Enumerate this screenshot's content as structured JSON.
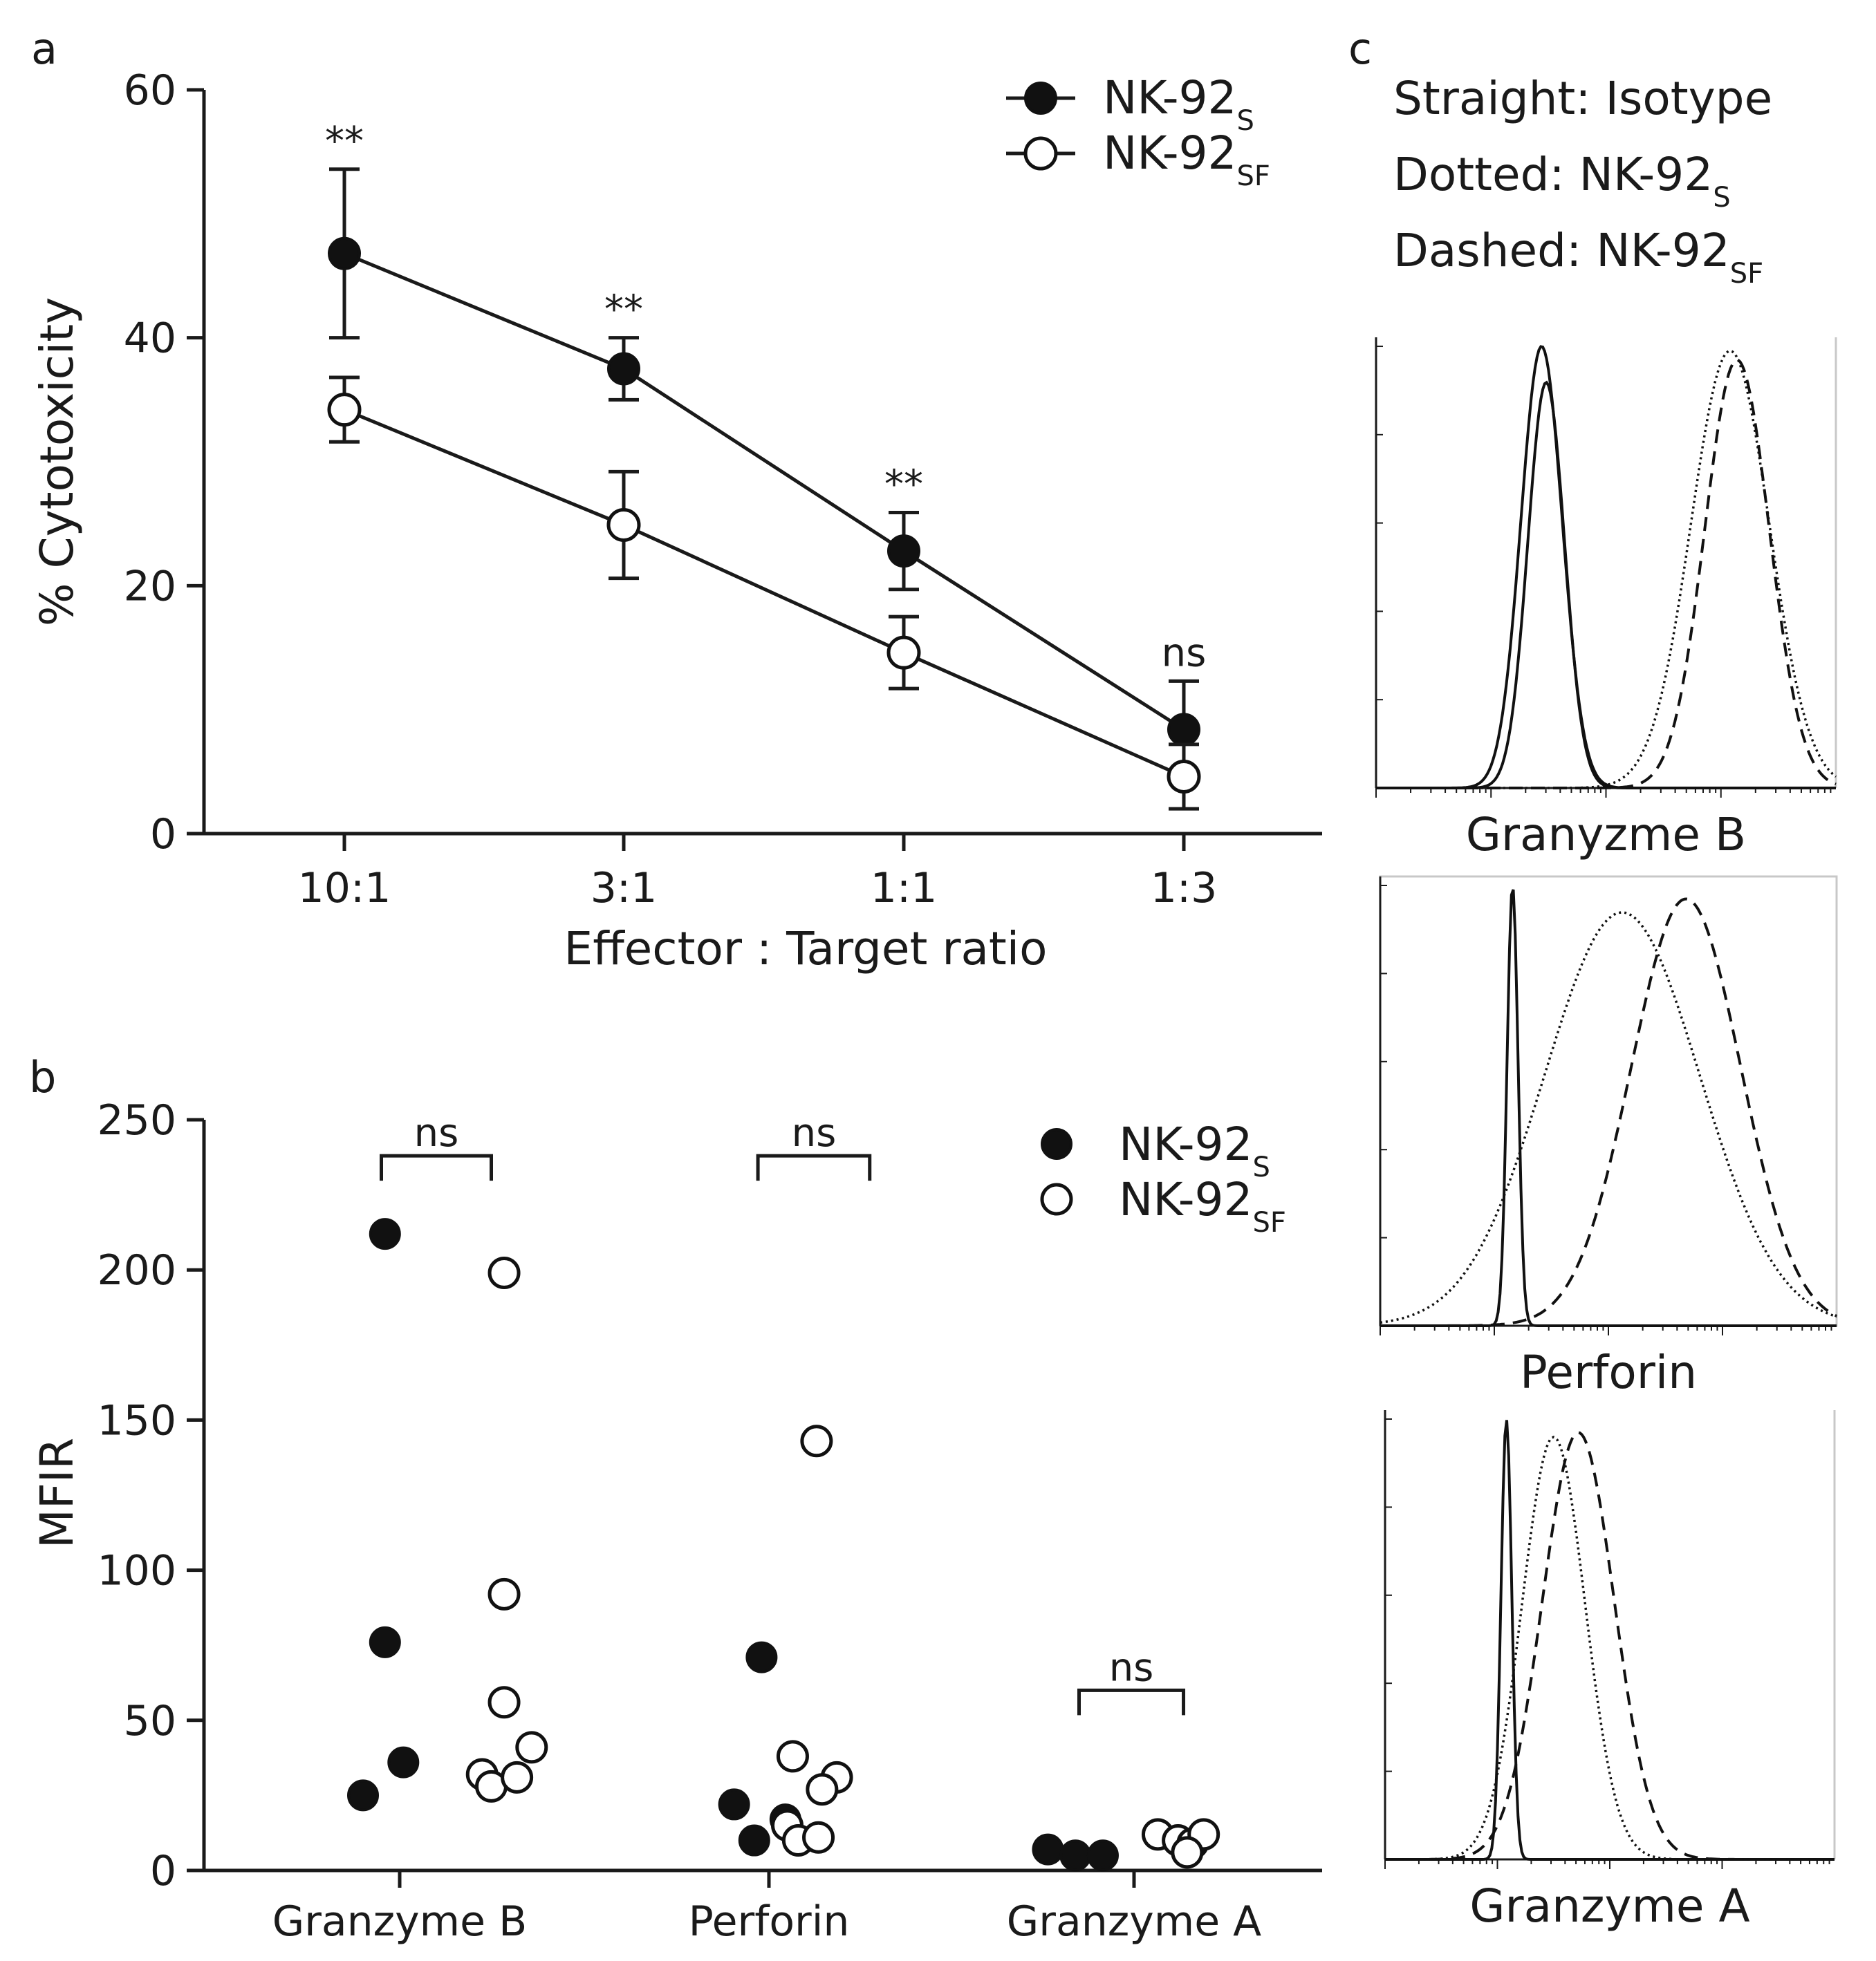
{
  "chart_data": [
    {
      "panel": "a",
      "type": "line",
      "title": "",
      "xlabel": "Effector : Target ratio",
      "ylabel": "% Cytotoxicity",
      "categories": [
        "10:1",
        "3:1",
        "1:1",
        "1:3"
      ],
      "ylim": [
        0,
        60
      ],
      "yticks": [
        0,
        20,
        40,
        60
      ],
      "series": [
        {
          "name": "NK-92",
          "sub": "S",
          "marker": "filled",
          "values": [
            46.8,
            37.5,
            22.8,
            8.4
          ],
          "error": [
            6.8,
            2.5,
            3.1,
            3.9
          ]
        },
        {
          "name": "NK-92",
          "sub": "SF",
          "marker": "open",
          "values": [
            34.2,
            24.9,
            14.6,
            4.6
          ],
          "error": [
            2.6,
            4.3,
            2.9,
            2.6
          ]
        }
      ],
      "annotations": [
        "**",
        "**",
        "**",
        "ns"
      ],
      "legend": "top-right"
    },
    {
      "panel": "b",
      "type": "scatter",
      "title": "",
      "xlabel": "",
      "ylabel": "MFIR",
      "categories": [
        "Granzyme B",
        "Perforin",
        "Granzyme A"
      ],
      "ylim": [
        0,
        250
      ],
      "yticks": [
        0,
        50,
        100,
        150,
        200,
        250
      ],
      "series": [
        {
          "name": "NK-92",
          "sub": "S",
          "marker": "filled",
          "points": [
            {
              "group": 0,
              "offset": -0.08,
              "value": 212
            },
            {
              "group": 0,
              "offset": -0.08,
              "value": 76
            },
            {
              "group": 0,
              "offset": 0.02,
              "value": 36
            },
            {
              "group": 0,
              "offset": -0.2,
              "value": 25
            },
            {
              "group": 1,
              "offset": -0.04,
              "value": 71
            },
            {
              "group": 1,
              "offset": -0.19,
              "value": 22
            },
            {
              "group": 1,
              "offset": 0.09,
              "value": 17
            },
            {
              "group": 1,
              "offset": -0.08,
              "value": 10
            },
            {
              "group": 2,
              "offset": -0.47,
              "value": 7
            },
            {
              "group": 2,
              "offset": -0.32,
              "value": 5
            },
            {
              "group": 2,
              "offset": -0.17,
              "value": 5
            }
          ]
        },
        {
          "name": "NK-92",
          "sub": "SF",
          "marker": "open",
          "points": [
            {
              "group": 0,
              "offset": 0.57,
              "value": 199
            },
            {
              "group": 0,
              "offset": 0.57,
              "value": 92
            },
            {
              "group": 0,
              "offset": 0.57,
              "value": 56
            },
            {
              "group": 0,
              "offset": 0.72,
              "value": 41
            },
            {
              "group": 0,
              "offset": 0.45,
              "value": 32
            },
            {
              "group": 0,
              "offset": 0.5,
              "value": 28
            },
            {
              "group": 0,
              "offset": 0.64,
              "value": 31
            },
            {
              "group": 1,
              "offset": 0.26,
              "value": 143
            },
            {
              "group": 1,
              "offset": 0.13,
              "value": 38
            },
            {
              "group": 1,
              "offset": 0.37,
              "value": 31
            },
            {
              "group": 1,
              "offset": 0.29,
              "value": 27
            },
            {
              "group": 1,
              "offset": 0.1,
              "value": 15
            },
            {
              "group": 1,
              "offset": 0.16,
              "value": 10
            },
            {
              "group": 1,
              "offset": 0.27,
              "value": 11
            },
            {
              "group": 2,
              "offset": 0.13,
              "value": 12
            },
            {
              "group": 2,
              "offset": 0.24,
              "value": 10
            },
            {
              "group": 2,
              "offset": 0.32,
              "value": 9
            },
            {
              "group": 2,
              "offset": 0.38,
              "value": 12
            },
            {
              "group": 2,
              "offset": 0.29,
              "value": 6
            }
          ]
        }
      ],
      "brackets": [
        {
          "label": "ns",
          "from": -0.1,
          "to": 0.5,
          "value": 238
        },
        {
          "label": "ns",
          "from": -0.06,
          "to": 0.55,
          "value": 238
        },
        {
          "label": "ns",
          "from": -0.3,
          "to": 0.27,
          "value": 60
        }
      ],
      "legend": "top-right"
    },
    {
      "panel": "c",
      "type": "histogram overlay",
      "legend_lines": [
        {
          "label": "Straight: Isotype",
          "sub": ""
        },
        {
          "label": "Dotted: NK-92",
          "sub": "S"
        },
        {
          "label": "Dashed: NK-92",
          "sub": "SF"
        }
      ],
      "panels": [
        {
          "xlabel": "Granyzme B",
          "curves": [
            {
              "style": "solid",
              "peak": 0.36,
              "width": 0.045,
              "height": 0.98
            },
            {
              "style": "solid",
              "peak": 0.37,
              "width": 0.04,
              "height": 0.9
            },
            {
              "style": "dotted",
              "peak": 0.77,
              "width": 0.085,
              "height": 0.97
            },
            {
              "style": "dashed",
              "peak": 0.785,
              "width": 0.07,
              "height": 0.95
            }
          ]
        },
        {
          "xlabel": "Perforin",
          "curves": [
            {
              "style": "solid",
              "peak": 0.29,
              "width": 0.012,
              "height": 0.98
            },
            {
              "style": "dotted",
              "peak": 0.53,
              "width": 0.17,
              "height": 0.92
            },
            {
              "style": "dashed",
              "peak": 0.67,
              "width": 0.12,
              "height": 0.95
            }
          ]
        },
        {
          "xlabel": "Granzyme A",
          "curves": [
            {
              "style": "solid",
              "peak": 0.27,
              "width": 0.012,
              "height": 0.98
            },
            {
              "style": "dotted",
              "peak": 0.375,
              "width": 0.07,
              "height": 0.94
            },
            {
              "style": "dashed",
              "peak": 0.43,
              "width": 0.08,
              "height": 0.95
            }
          ]
        }
      ]
    }
  ],
  "labels": {
    "panel_a": "a",
    "panel_b": "b",
    "panel_c": "c"
  }
}
